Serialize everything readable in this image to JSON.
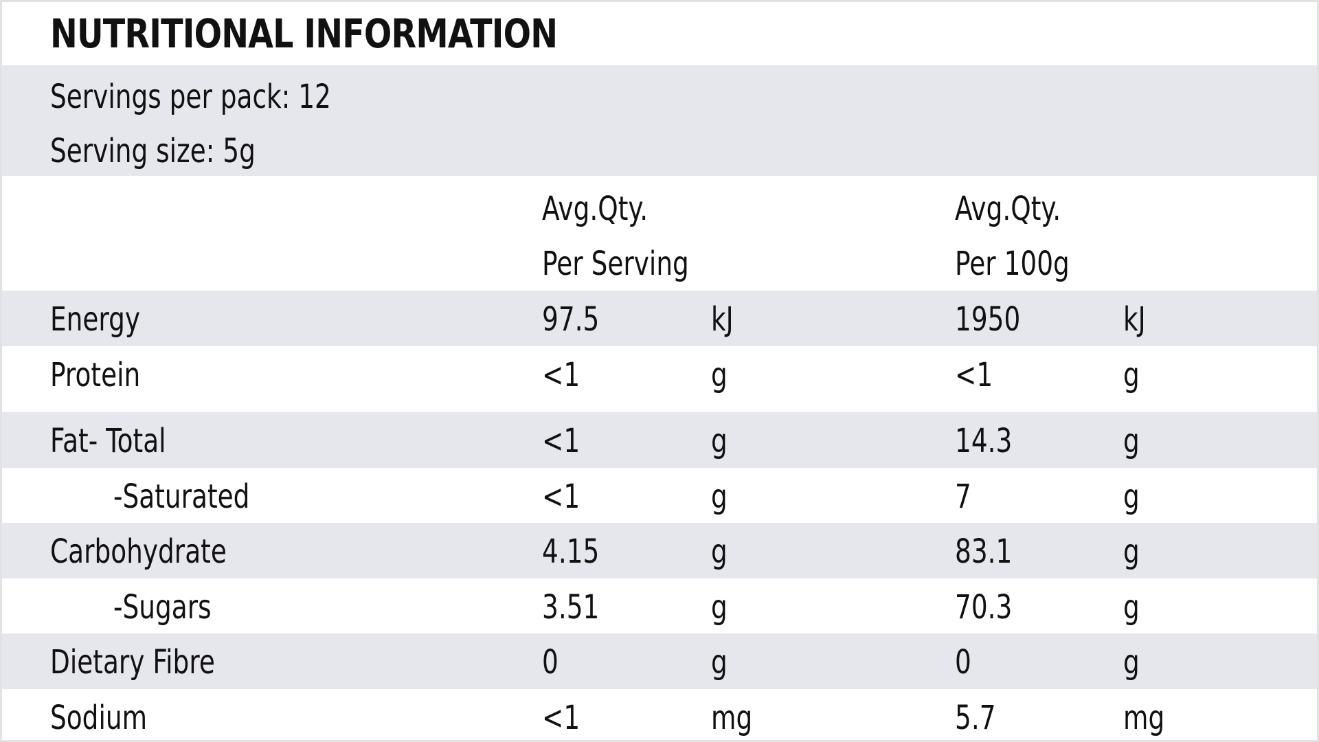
{
  "title": "NUTRITIONAL INFORMATION",
  "servings": {
    "per_pack": "Servings per pack: 12",
    "size": "Serving size: 5g"
  },
  "columns": {
    "per_serving": [
      "Avg.Qty.",
      "Per Serving"
    ],
    "per_100g": [
      "Avg.Qty.",
      "Per 100g"
    ]
  },
  "rows": [
    {
      "label": "Energy",
      "serving_value": "97.5",
      "serving_unit": "kJ",
      "per100_value": "1950",
      "per100_unit": "kJ"
    },
    {
      "label": "Protein",
      "serving_value": "<1",
      "serving_unit": "g",
      "per100_value": "<1",
      "per100_unit": "g"
    },
    {
      "label": "Fat- Total",
      "serving_value": "<1",
      "serving_unit": "g",
      "per100_value": "14.3",
      "per100_unit": "g"
    },
    {
      "label": "-Saturated",
      "serving_value": "<1",
      "serving_unit": "g",
      "per100_value": "7",
      "per100_unit": "g"
    },
    {
      "label": "Carbohydrate",
      "serving_value": "4.15",
      "serving_unit": "g",
      "per100_value": "83.1",
      "per100_unit": "g"
    },
    {
      "label": "-Sugars",
      "serving_value": "3.51",
      "serving_unit": "g",
      "per100_value": "70.3",
      "per100_unit": "g"
    },
    {
      "label": "Dietary Fibre",
      "serving_value": "0",
      "serving_unit": "g",
      "per100_value": "0",
      "per100_unit": "g"
    },
    {
      "label": "Sodium",
      "serving_value": "<1",
      "serving_unit": "mg",
      "per100_value": "5.7",
      "per100_unit": "mg"
    }
  ],
  "colors": {
    "shaded_row": "#e6e6ed",
    "plain_row": "#ffffff",
    "text": "#111111",
    "border": "#e2e2e6"
  }
}
